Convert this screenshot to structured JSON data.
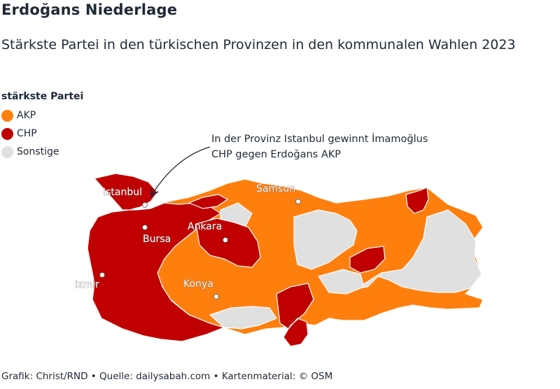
{
  "title": "Erdoğans Niederlage",
  "subtitle": "Stärkste Partei in den türkischen Provinzen in den kommunalen Wahlen 2023",
  "legend": {
    "title": "stärkste Partei",
    "items": [
      {
        "label": "AKP",
        "color": "#ff7f0e"
      },
      {
        "label": "CHP",
        "color": "#c00000"
      },
      {
        "label": "Sonstige",
        "color": "#e0e0e0"
      }
    ]
  },
  "annotation": {
    "line1": "In der Provinz Istanbul gewinnt İmamoğlus",
    "line2": "CHP gegen Erdoğans AKP"
  },
  "cities": [
    {
      "name": "Istanbul"
    },
    {
      "name": "Samsun"
    },
    {
      "name": "Ankara"
    },
    {
      "name": "Bursa"
    },
    {
      "name": "Izmir"
    },
    {
      "name": "Konya"
    }
  ],
  "footer": "Grafik: Christ/RND • Quelle: dailysabah.com • Kartenmaterial: © OSM"
}
